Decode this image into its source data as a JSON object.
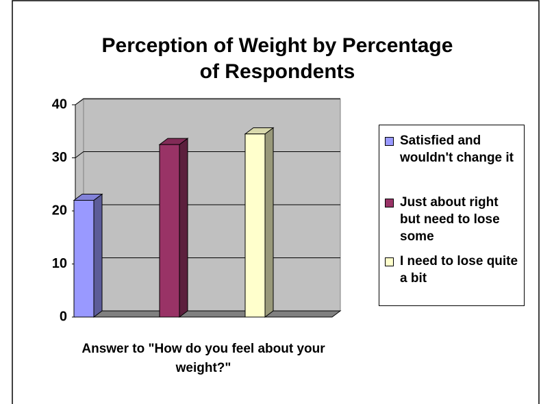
{
  "chart_data": {
    "type": "bar",
    "title": "Perception of Weight by Percentage of Respondents",
    "x_label": "Answer to \"How do you feel about your weight?\"",
    "series": [
      {
        "name": "Satisfied and wouldn't change it",
        "color": "#9999ff",
        "values": [
          22
        ]
      },
      {
        "name": "Just about right but need to lose some",
        "color": "#993366",
        "values": [
          32.5
        ]
      },
      {
        "name": "I need to lose quite a bit",
        "color": "#ffffcc",
        "values": [
          34.5
        ]
      }
    ],
    "ylim": [
      0,
      40
    ],
    "yticks": [
      0,
      10,
      20,
      30,
      40
    ],
    "grid": true
  }
}
